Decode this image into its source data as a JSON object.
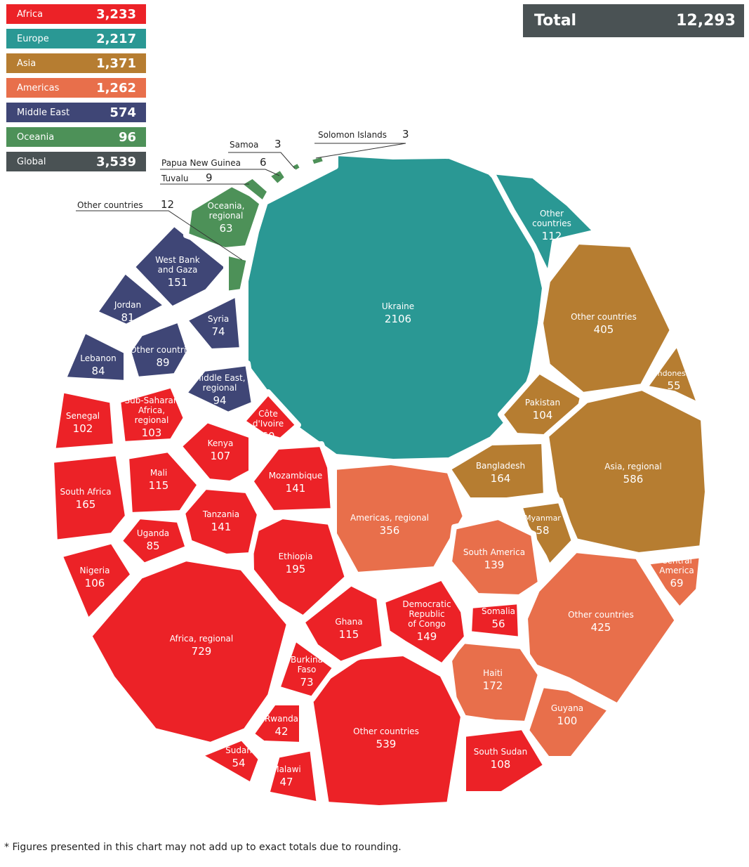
{
  "legend": [
    {
      "name": "Africa",
      "value": "3,233",
      "color": "#ec2227"
    },
    {
      "name": "Europe",
      "value": "2,217",
      "color": "#2a9894"
    },
    {
      "name": "Asia",
      "value": "1,371",
      "color": "#b67d31"
    },
    {
      "name": "Americas",
      "value": "1,262",
      "color": "#e86f4b"
    },
    {
      "name": "Middle East",
      "value": "574",
      "color": "#3f4676"
    },
    {
      "name": "Oceania",
      "value": "96",
      "color": "#4d9158"
    },
    {
      "name": "Global",
      "value": "3,539",
      "color": "#4a5254"
    }
  ],
  "total": {
    "label": "Total",
    "value": "12,293"
  },
  "footnote": "* Figures presented in this chart may not add up to exact totals due to rounding.",
  "chart_data": {
    "type": "voronoi-treemap",
    "cells": [
      {
        "region": "Europe",
        "label": "Ukraine",
        "value": 2106
      },
      {
        "region": "Europe",
        "label": "Other countries",
        "value": 112
      },
      {
        "region": "Asia",
        "label": "Other countries",
        "value": 405
      },
      {
        "region": "Asia",
        "label": "Indonesia",
        "value": 55
      },
      {
        "region": "Asia",
        "label": "Pakistan",
        "value": 104
      },
      {
        "region": "Asia",
        "label": "Asia, regional",
        "value": 586
      },
      {
        "region": "Asia",
        "label": "Bangladesh",
        "value": 164
      },
      {
        "region": "Asia",
        "label": "Myanmar",
        "value": 58
      },
      {
        "region": "Americas",
        "label": "Americas, regional",
        "value": 356
      },
      {
        "region": "Americas",
        "label": "South America",
        "value": 139
      },
      {
        "region": "Americas",
        "label": "Central America",
        "value": 69
      },
      {
        "region": "Americas",
        "label": "Other countries",
        "value": 425
      },
      {
        "region": "Americas",
        "label": "Haiti",
        "value": 172
      },
      {
        "region": "Americas",
        "label": "Guyana",
        "value": 100
      },
      {
        "region": "Africa",
        "label": "Somalia",
        "value": 56
      },
      {
        "region": "Africa",
        "label": "Democratic Republic of Congo",
        "value": 149
      },
      {
        "region": "Africa",
        "label": "South Sudan",
        "value": 108
      },
      {
        "region": "Africa",
        "label": "Other countries",
        "value": 539
      },
      {
        "region": "Africa",
        "label": "Ghana",
        "value": 115
      },
      {
        "region": "Africa",
        "label": "Burkina Faso",
        "value": 73
      },
      {
        "region": "Africa",
        "label": "Rwanda",
        "value": 42
      },
      {
        "region": "Africa",
        "label": "Malawi",
        "value": 47
      },
      {
        "region": "Africa",
        "label": "Sudan",
        "value": 54
      },
      {
        "region": "Africa",
        "label": "Africa, regional",
        "value": 729
      },
      {
        "region": "Africa",
        "label": "Ethiopia",
        "value": 195
      },
      {
        "region": "Africa",
        "label": "Mozambique",
        "value": 141
      },
      {
        "region": "Africa",
        "label": "Tanzania",
        "value": 141
      },
      {
        "region": "Africa",
        "label": "Kenya",
        "value": 107
      },
      {
        "region": "Africa",
        "label": "Côte d'Ivoire",
        "value": 60
      },
      {
        "region": "Africa",
        "label": "Mali",
        "value": 115
      },
      {
        "region": "Africa",
        "label": "Uganda",
        "value": 85
      },
      {
        "region": "Africa",
        "label": "Nigeria",
        "value": 106
      },
      {
        "region": "Africa",
        "label": "South Africa",
        "value": 165
      },
      {
        "region": "Africa",
        "label": "Senegal",
        "value": 102
      },
      {
        "region": "Africa",
        "label": "Sub-Saharan Africa, regional",
        "value": 103
      },
      {
        "region": "Middle East",
        "label": "Middle East, regional",
        "value": 94
      },
      {
        "region": "Middle East",
        "label": "Other countries",
        "value": 89
      },
      {
        "region": "Middle East",
        "label": "Lebanon",
        "value": 84
      },
      {
        "region": "Middle East",
        "label": "Jordan",
        "value": 81
      },
      {
        "region": "Middle East",
        "label": "Syria",
        "value": 74
      },
      {
        "region": "Middle East",
        "label": "West Bank and Gaza",
        "value": 151
      },
      {
        "region": "Oceania",
        "label": "Oceania, regional",
        "value": 63
      },
      {
        "region": "Oceania",
        "label": "Other countries",
        "value": 12
      },
      {
        "region": "Oceania",
        "label": "Tuvalu",
        "value": 9
      },
      {
        "region": "Oceania",
        "label": "Papua New Guinea",
        "value": 6
      },
      {
        "region": "Oceania",
        "label": "Samoa",
        "value": 3
      },
      {
        "region": "Oceania",
        "label": "Solomon Islands",
        "value": 3
      }
    ],
    "callouts": [
      "Solomon Islands",
      "Samoa",
      "Papua New Guinea",
      "Tuvalu",
      "Other countries"
    ]
  }
}
